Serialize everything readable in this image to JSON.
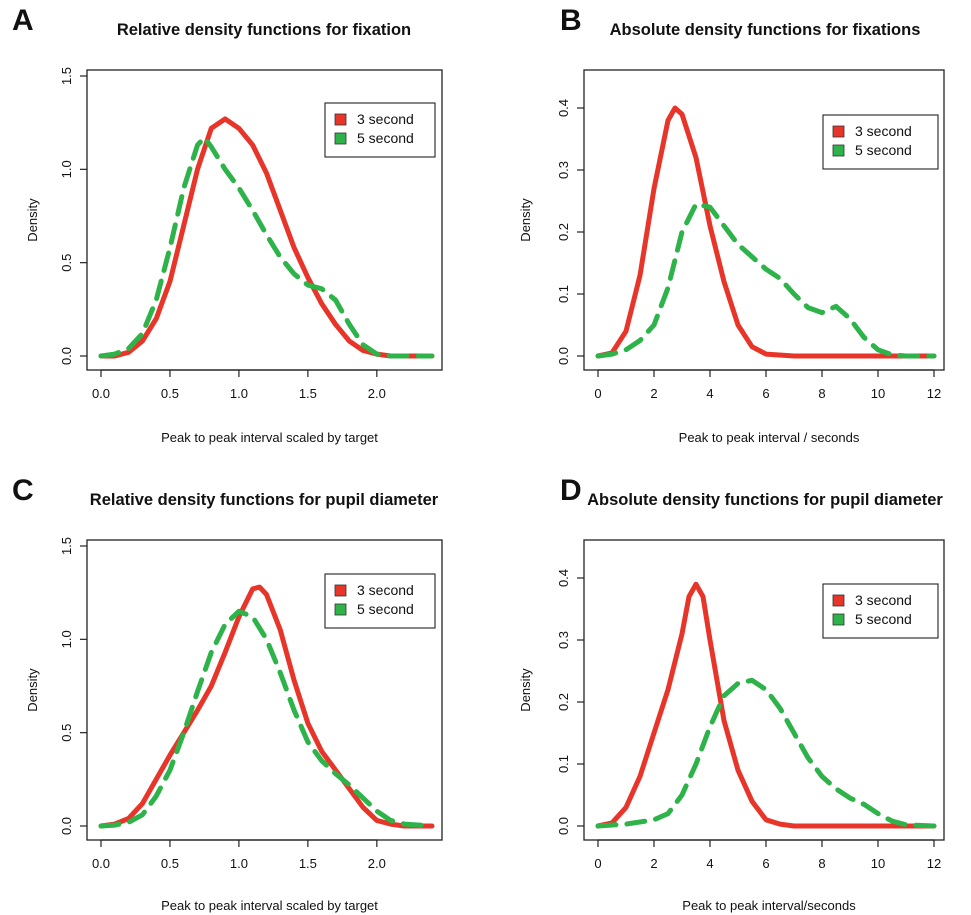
{
  "chart_data": [
    {
      "panel": "A",
      "type": "line",
      "title": "Relative density functions for fixation",
      "xlabel": "Peak to peak interval scaled by target",
      "ylabel": "Density",
      "xlim": [
        0,
        2.4
      ],
      "ylim": [
        0,
        1.5
      ],
      "xticks": [
        "0.0",
        "0.5",
        "1.0",
        "1.5",
        "2.0"
      ],
      "yticks": [
        "0.0",
        "0.5",
        "1.0",
        "1.5"
      ],
      "legend_position": "top-right",
      "legend": [
        "3 second",
        "5 second"
      ],
      "series": [
        {
          "name": "3 second",
          "color": "#e8352a",
          "style": "solid",
          "points": [
            [
              0,
              0
            ],
            [
              0.1,
              0
            ],
            [
              0.2,
              0.02
            ],
            [
              0.3,
              0.08
            ],
            [
              0.4,
              0.2
            ],
            [
              0.5,
              0.4
            ],
            [
              0.6,
              0.7
            ],
            [
              0.7,
              1.0
            ],
            [
              0.8,
              1.22
            ],
            [
              0.9,
              1.27
            ],
            [
              1.0,
              1.22
            ],
            [
              1.1,
              1.13
            ],
            [
              1.2,
              0.98
            ],
            [
              1.3,
              0.78
            ],
            [
              1.4,
              0.58
            ],
            [
              1.5,
              0.42
            ],
            [
              1.6,
              0.28
            ],
            [
              1.7,
              0.17
            ],
            [
              1.8,
              0.08
            ],
            [
              1.9,
              0.03
            ],
            [
              2.0,
              0.01
            ],
            [
              2.1,
              0
            ],
            [
              2.4,
              0
            ]
          ]
        },
        {
          "name": "5 second",
          "color": "#2db34a",
          "style": "dashed",
          "points": [
            [
              0,
              0
            ],
            [
              0.1,
              0.01
            ],
            [
              0.2,
              0.04
            ],
            [
              0.3,
              0.12
            ],
            [
              0.4,
              0.3
            ],
            [
              0.5,
              0.58
            ],
            [
              0.6,
              0.9
            ],
            [
              0.7,
              1.13
            ],
            [
              0.75,
              1.17
            ],
            [
              0.8,
              1.12
            ],
            [
              0.9,
              1.0
            ],
            [
              1.0,
              0.9
            ],
            [
              1.1,
              0.78
            ],
            [
              1.2,
              0.65
            ],
            [
              1.3,
              0.53
            ],
            [
              1.4,
              0.44
            ],
            [
              1.5,
              0.38
            ],
            [
              1.6,
              0.36
            ],
            [
              1.7,
              0.3
            ],
            [
              1.8,
              0.17
            ],
            [
              1.9,
              0.06
            ],
            [
              2.0,
              0.01
            ],
            [
              2.1,
              0
            ],
            [
              2.4,
              0
            ]
          ]
        }
      ]
    },
    {
      "panel": "B",
      "type": "line",
      "title": "Absolute density functions for fixations",
      "xlabel": "Peak to peak interval / seconds",
      "ylabel": "Density",
      "xlim": [
        0,
        12
      ],
      "ylim": [
        0,
        0.4
      ],
      "xticks": [
        "0",
        "2",
        "4",
        "6",
        "8",
        "10",
        "12"
      ],
      "yticks": [
        "0.0",
        "0.1",
        "0.2",
        "0.3",
        "0.4"
      ],
      "legend_position": "top-right",
      "legend": [
        "3 second",
        "5 second"
      ],
      "series": [
        {
          "name": "3 second",
          "color": "#e8352a",
          "style": "solid",
          "points": [
            [
              0,
              0
            ],
            [
              0.5,
              0.005
            ],
            [
              1,
              0.04
            ],
            [
              1.5,
              0.13
            ],
            [
              2,
              0.27
            ],
            [
              2.5,
              0.38
            ],
            [
              2.75,
              0.4
            ],
            [
              3,
              0.39
            ],
            [
              3.5,
              0.32
            ],
            [
              4,
              0.21
            ],
            [
              4.5,
              0.12
            ],
            [
              5,
              0.05
            ],
            [
              5.5,
              0.015
            ],
            [
              6,
              0.003
            ],
            [
              7,
              0
            ],
            [
              12,
              0
            ]
          ]
        },
        {
          "name": "5 second",
          "color": "#2db34a",
          "style": "dashed",
          "points": [
            [
              0,
              0
            ],
            [
              0.5,
              0.003
            ],
            [
              1,
              0.01
            ],
            [
              1.5,
              0.025
            ],
            [
              2,
              0.05
            ],
            [
              2.5,
              0.11
            ],
            [
              3,
              0.2
            ],
            [
              3.5,
              0.245
            ],
            [
              4,
              0.24
            ],
            [
              4.5,
              0.21
            ],
            [
              5,
              0.18
            ],
            [
              5.5,
              0.16
            ],
            [
              6,
              0.14
            ],
            [
              6.5,
              0.125
            ],
            [
              7,
              0.1
            ],
            [
              7.5,
              0.078
            ],
            [
              8,
              0.07
            ],
            [
              8.5,
              0.08
            ],
            [
              9,
              0.06
            ],
            [
              9.5,
              0.03
            ],
            [
              10,
              0.01
            ],
            [
              10.5,
              0.002
            ],
            [
              11,
              0
            ],
            [
              12,
              0
            ]
          ]
        }
      ]
    },
    {
      "panel": "C",
      "type": "line",
      "title": "Relative density functions for pupil diameter",
      "xlabel": "Peak to peak interval scaled by target",
      "ylabel": "Density",
      "xlim": [
        0,
        2.4
      ],
      "ylim": [
        0,
        1.5
      ],
      "xticks": [
        "0.0",
        "0.5",
        "1.0",
        "1.5",
        "2.0"
      ],
      "yticks": [
        "0.0",
        "0.5",
        "1.0",
        "1.5"
      ],
      "legend_position": "top-right",
      "legend": [
        "3 second",
        "5 second"
      ],
      "series": [
        {
          "name": "3 second",
          "color": "#e8352a",
          "style": "solid",
          "points": [
            [
              0,
              0
            ],
            [
              0.1,
              0.01
            ],
            [
              0.2,
              0.04
            ],
            [
              0.3,
              0.12
            ],
            [
              0.4,
              0.25
            ],
            [
              0.5,
              0.38
            ],
            [
              0.6,
              0.5
            ],
            [
              0.7,
              0.62
            ],
            [
              0.8,
              0.75
            ],
            [
              0.9,
              0.93
            ],
            [
              1.0,
              1.12
            ],
            [
              1.1,
              1.27
            ],
            [
              1.15,
              1.28
            ],
            [
              1.2,
              1.24
            ],
            [
              1.3,
              1.05
            ],
            [
              1.4,
              0.78
            ],
            [
              1.5,
              0.55
            ],
            [
              1.6,
              0.4
            ],
            [
              1.7,
              0.3
            ],
            [
              1.8,
              0.2
            ],
            [
              1.9,
              0.1
            ],
            [
              2.0,
              0.03
            ],
            [
              2.1,
              0.01
            ],
            [
              2.2,
              0
            ],
            [
              2.4,
              0
            ]
          ]
        },
        {
          "name": "5 second",
          "color": "#2db34a",
          "style": "dashed",
          "points": [
            [
              0,
              0
            ],
            [
              0.1,
              0.005
            ],
            [
              0.2,
              0.02
            ],
            [
              0.3,
              0.06
            ],
            [
              0.4,
              0.16
            ],
            [
              0.5,
              0.3
            ],
            [
              0.6,
              0.5
            ],
            [
              0.7,
              0.72
            ],
            [
              0.8,
              0.93
            ],
            [
              0.9,
              1.08
            ],
            [
              1.0,
              1.15
            ],
            [
              1.1,
              1.12
            ],
            [
              1.2,
              1.0
            ],
            [
              1.3,
              0.82
            ],
            [
              1.4,
              0.62
            ],
            [
              1.5,
              0.45
            ],
            [
              1.6,
              0.35
            ],
            [
              1.7,
              0.28
            ],
            [
              1.8,
              0.22
            ],
            [
              1.9,
              0.15
            ],
            [
              2.0,
              0.08
            ],
            [
              2.1,
              0.03
            ],
            [
              2.2,
              0.01
            ],
            [
              2.4,
              0
            ]
          ]
        }
      ]
    },
    {
      "panel": "D",
      "type": "line",
      "title": "Absolute density functions for pupil diameter",
      "xlabel": "Peak to peak interval/seconds",
      "ylabel": "Density",
      "xlim": [
        0,
        12
      ],
      "ylim": [
        0,
        0.4
      ],
      "xticks": [
        "0",
        "2",
        "4",
        "6",
        "8",
        "10",
        "12"
      ],
      "yticks": [
        "0.0",
        "0.1",
        "0.2",
        "0.3",
        "0.4"
      ],
      "legend_position": "top-right",
      "legend": [
        "3 second",
        "5 second"
      ],
      "series": [
        {
          "name": "3 second",
          "color": "#e8352a",
          "style": "solid",
          "points": [
            [
              0,
              0
            ],
            [
              0.5,
              0.005
            ],
            [
              1,
              0.03
            ],
            [
              1.5,
              0.08
            ],
            [
              2,
              0.15
            ],
            [
              2.5,
              0.22
            ],
            [
              3,
              0.31
            ],
            [
              3.25,
              0.37
            ],
            [
              3.5,
              0.39
            ],
            [
              3.75,
              0.37
            ],
            [
              4,
              0.3
            ],
            [
              4.5,
              0.17
            ],
            [
              5,
              0.09
            ],
            [
              5.5,
              0.04
            ],
            [
              6,
              0.01
            ],
            [
              6.5,
              0.003
            ],
            [
              7,
              0
            ],
            [
              12,
              0
            ]
          ]
        },
        {
          "name": "5 second",
          "color": "#2db34a",
          "style": "dashed",
          "points": [
            [
              0,
              0
            ],
            [
              1,
              0.003
            ],
            [
              2,
              0.01
            ],
            [
              2.5,
              0.02
            ],
            [
              3,
              0.05
            ],
            [
              3.5,
              0.1
            ],
            [
              4,
              0.16
            ],
            [
              4.5,
              0.21
            ],
            [
              5,
              0.23
            ],
            [
              5.5,
              0.235
            ],
            [
              6,
              0.22
            ],
            [
              6.5,
              0.19
            ],
            [
              7,
              0.15
            ],
            [
              7.5,
              0.11
            ],
            [
              8,
              0.08
            ],
            [
              8.5,
              0.06
            ],
            [
              9,
              0.045
            ],
            [
              9.5,
              0.035
            ],
            [
              10,
              0.02
            ],
            [
              10.5,
              0.008
            ],
            [
              11,
              0.002
            ],
            [
              12,
              0
            ]
          ]
        }
      ]
    }
  ]
}
